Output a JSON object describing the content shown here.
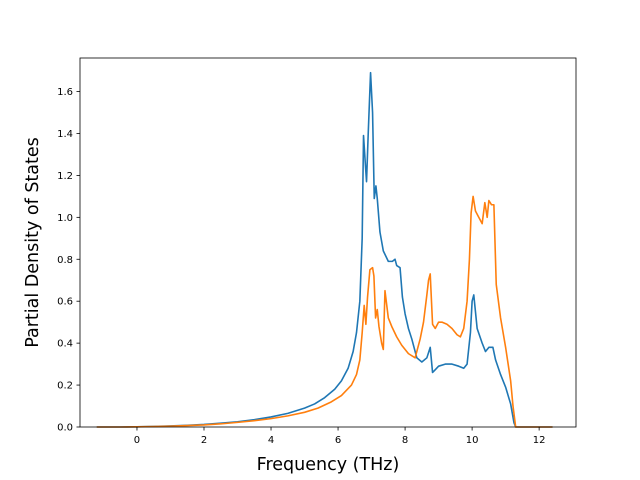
{
  "chart_data": {
    "type": "line",
    "title": "",
    "xlabel": "Frequency (THz)",
    "ylabel": "Partial Density of States",
    "xlim": [
      -1.7,
      13.1
    ],
    "ylim": [
      0.0,
      1.76
    ],
    "xticks": [
      0,
      2,
      4,
      6,
      8,
      10,
      12
    ],
    "xtick_labels": [
      "0",
      "2",
      "4",
      "6",
      "8",
      "10",
      "12"
    ],
    "yticks": [
      0.0,
      0.2,
      0.4,
      0.6,
      0.8,
      1.0,
      1.2,
      1.4,
      1.6
    ],
    "ytick_labels": [
      "0.0",
      "0.2",
      "0.4",
      "0.6",
      "0.8",
      "1.0",
      "1.2",
      "1.4",
      "1.6"
    ],
    "grid": false,
    "legend": "none",
    "series": [
      {
        "color": "#1f77b4",
        "points": [
          [
            -1.2,
            0.0
          ],
          [
            -0.5,
            0.0
          ],
          [
            0.0,
            0.001
          ],
          [
            0.5,
            0.003
          ],
          [
            1.0,
            0.005
          ],
          [
            1.5,
            0.008
          ],
          [
            2.0,
            0.012
          ],
          [
            2.5,
            0.018
          ],
          [
            3.0,
            0.025
          ],
          [
            3.5,
            0.035
          ],
          [
            4.0,
            0.048
          ],
          [
            4.5,
            0.065
          ],
          [
            5.0,
            0.09
          ],
          [
            5.3,
            0.11
          ],
          [
            5.6,
            0.14
          ],
          [
            5.9,
            0.18
          ],
          [
            6.1,
            0.22
          ],
          [
            6.3,
            0.28
          ],
          [
            6.45,
            0.36
          ],
          [
            6.55,
            0.45
          ],
          [
            6.65,
            0.6
          ],
          [
            6.72,
            0.9
          ],
          [
            6.76,
            1.39
          ],
          [
            6.82,
            1.24
          ],
          [
            6.85,
            1.17
          ],
          [
            6.9,
            1.4
          ],
          [
            6.97,
            1.69
          ],
          [
            7.03,
            1.5
          ],
          [
            7.08,
            1.09
          ],
          [
            7.13,
            1.15
          ],
          [
            7.17,
            1.09
          ],
          [
            7.25,
            0.93
          ],
          [
            7.35,
            0.84
          ],
          [
            7.5,
            0.79
          ],
          [
            7.62,
            0.79
          ],
          [
            7.7,
            0.8
          ],
          [
            7.75,
            0.77
          ],
          [
            7.85,
            0.76
          ],
          [
            7.92,
            0.62
          ],
          [
            8.0,
            0.54
          ],
          [
            8.1,
            0.47
          ],
          [
            8.2,
            0.42
          ],
          [
            8.35,
            0.33
          ],
          [
            8.5,
            0.31
          ],
          [
            8.65,
            0.33
          ],
          [
            8.75,
            0.38
          ],
          [
            8.82,
            0.26
          ],
          [
            8.88,
            0.27
          ],
          [
            9.0,
            0.29
          ],
          [
            9.2,
            0.3
          ],
          [
            9.4,
            0.3
          ],
          [
            9.6,
            0.29
          ],
          [
            9.75,
            0.28
          ],
          [
            9.85,
            0.3
          ],
          [
            9.95,
            0.45
          ],
          [
            10.0,
            0.6
          ],
          [
            10.05,
            0.63
          ],
          [
            10.15,
            0.47
          ],
          [
            10.3,
            0.4
          ],
          [
            10.4,
            0.36
          ],
          [
            10.5,
            0.38
          ],
          [
            10.62,
            0.38
          ],
          [
            10.7,
            0.32
          ],
          [
            10.85,
            0.25
          ],
          [
            11.0,
            0.19
          ],
          [
            11.15,
            0.11
          ],
          [
            11.25,
            0.02
          ],
          [
            11.3,
            0.0
          ],
          [
            12.4,
            0.0
          ]
        ]
      },
      {
        "color": "#ff7f0e",
        "points": [
          [
            -1.2,
            0.0
          ],
          [
            -0.5,
            0.0
          ],
          [
            0.0,
            0.001
          ],
          [
            0.5,
            0.002
          ],
          [
            1.0,
            0.004
          ],
          [
            1.5,
            0.007
          ],
          [
            2.0,
            0.01
          ],
          [
            2.5,
            0.015
          ],
          [
            3.0,
            0.022
          ],
          [
            3.5,
            0.03
          ],
          [
            4.0,
            0.04
          ],
          [
            4.5,
            0.053
          ],
          [
            5.0,
            0.07
          ],
          [
            5.4,
            0.09
          ],
          [
            5.8,
            0.12
          ],
          [
            6.1,
            0.15
          ],
          [
            6.4,
            0.2
          ],
          [
            6.55,
            0.25
          ],
          [
            6.65,
            0.32
          ],
          [
            6.72,
            0.45
          ],
          [
            6.78,
            0.58
          ],
          [
            6.83,
            0.49
          ],
          [
            6.88,
            0.62
          ],
          [
            6.95,
            0.75
          ],
          [
            7.03,
            0.76
          ],
          [
            7.07,
            0.72
          ],
          [
            7.12,
            0.52
          ],
          [
            7.17,
            0.56
          ],
          [
            7.22,
            0.48
          ],
          [
            7.3,
            0.4
          ],
          [
            7.35,
            0.37
          ],
          [
            7.4,
            0.65
          ],
          [
            7.5,
            0.52
          ],
          [
            7.6,
            0.48
          ],
          [
            7.75,
            0.43
          ],
          [
            7.9,
            0.39
          ],
          [
            8.1,
            0.35
          ],
          [
            8.3,
            0.33
          ],
          [
            8.45,
            0.42
          ],
          [
            8.55,
            0.5
          ],
          [
            8.65,
            0.63
          ],
          [
            8.7,
            0.7
          ],
          [
            8.75,
            0.73
          ],
          [
            8.82,
            0.49
          ],
          [
            8.9,
            0.47
          ],
          [
            9.0,
            0.5
          ],
          [
            9.1,
            0.5
          ],
          [
            9.25,
            0.49
          ],
          [
            9.4,
            0.47
          ],
          [
            9.55,
            0.44
          ],
          [
            9.65,
            0.43
          ],
          [
            9.75,
            0.47
          ],
          [
            9.85,
            0.6
          ],
          [
            9.92,
            0.8
          ],
          [
            9.97,
            1.02
          ],
          [
            10.03,
            1.1
          ],
          [
            10.1,
            1.03
          ],
          [
            10.2,
            1.0
          ],
          [
            10.3,
            0.97
          ],
          [
            10.38,
            1.07
          ],
          [
            10.45,
            1.0
          ],
          [
            10.5,
            1.08
          ],
          [
            10.58,
            1.06
          ],
          [
            10.65,
            1.06
          ],
          [
            10.72,
            0.68
          ],
          [
            10.85,
            0.52
          ],
          [
            11.0,
            0.38
          ],
          [
            11.15,
            0.22
          ],
          [
            11.22,
            0.1
          ],
          [
            11.3,
            0.0
          ],
          [
            12.4,
            0.0
          ]
        ]
      }
    ]
  }
}
